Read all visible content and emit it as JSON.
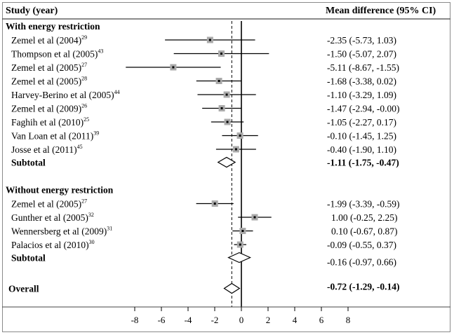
{
  "header": {
    "study": "Study (year)",
    "effect": "Mean difference (95% CI)"
  },
  "chart_data": {
    "type": "forest",
    "xlabel": "",
    "xlim": [
      -8,
      8
    ],
    "x_ticks": [
      "-8",
      "-6",
      "-4",
      "-2",
      "0",
      "2",
      "4",
      "6",
      "8"
    ],
    "overall_effect_line": -0.72,
    "sections": [
      {
        "title": "With energy restriction",
        "studies": [
          {
            "name": "Zemel et al (2004)",
            "ref": "29",
            "mean": -2.35,
            "lo": -5.73,
            "hi": 1.03,
            "text": "-2.35 (-5.73, 1.03)"
          },
          {
            "name": "Thompson et al (2005)",
            "ref": "43",
            "mean": -1.5,
            "lo": -5.07,
            "hi": 2.07,
            "text": "-1.50 (-5.07, 2.07)"
          },
          {
            "name": "Zemel et al (2005)",
            "ref": "27",
            "mean": -5.11,
            "lo": -8.67,
            "hi": -1.55,
            "text": "-5.11 (-8.67, -1.55)"
          },
          {
            "name": "Zemel et al (2005)",
            "ref": "28",
            "mean": -1.68,
            "lo": -3.38,
            "hi": 0.02,
            "text": "-1.68 (-3.38, 0.02)"
          },
          {
            "name": "Harvey-Berino et al (2005)",
            "ref": "44",
            "mean": -1.1,
            "lo": -3.29,
            "hi": 1.09,
            "text": "-1.10 (-3.29, 1.09)"
          },
          {
            "name": "Zemel et al (2009)",
            "ref": "26",
            "mean": -1.47,
            "lo": -2.94,
            "hi": -0.0,
            "text": "-1.47 (-2.94, -0.00)"
          },
          {
            "name": "Faghih et al (2010)",
            "ref": "25",
            "mean": -1.05,
            "lo": -2.27,
            "hi": 0.17,
            "text": "-1.05 (-2.27, 0.17)"
          },
          {
            "name": "Van Loan et al (2011)",
            "ref": "39",
            "mean": -0.1,
            "lo": -1.45,
            "hi": 1.25,
            "text": "-0.10 (-1.45, 1.25)"
          },
          {
            "name": "Josse et al (2011)",
            "ref": "45",
            "mean": -0.4,
            "lo": -1.9,
            "hi": 1.1,
            "text": "-0.40 (-1.90, 1.10)"
          }
        ],
        "subtotal": {
          "label": "Subtotal",
          "mean": -1.11,
          "lo": -1.75,
          "hi": -0.47,
          "text": "-1.11 (-1.75, -0.47)"
        }
      },
      {
        "title": "Without energy restriction",
        "studies": [
          {
            "name": "Zemel et al (2005)",
            "ref": "27",
            "mean": -1.99,
            "lo": -3.39,
            "hi": -0.59,
            "text": "-1.99 (-3.39, -0.59)"
          },
          {
            "name": "Gunther et al (2005)",
            "ref": "32",
            "mean": 1.0,
            "lo": -0.25,
            "hi": 2.25,
            "text": "1.00 (-0.25, 2.25)"
          },
          {
            "name": "Wennersberg et al (2009)",
            "ref": "31",
            "mean": 0.1,
            "lo": -0.67,
            "hi": 0.87,
            "text": "0.10 (-0.67, 0.87)"
          },
          {
            "name": "Palacios et al (2010)",
            "ref": "30",
            "mean": -0.09,
            "lo": -0.55,
            "hi": 0.37,
            "text": "-0.09 (-0.55, 0.37)"
          }
        ],
        "subtotal": {
          "label": "Subtotal",
          "mean": -0.16,
          "lo": -0.97,
          "hi": 0.66,
          "text": "-0.16 (-0.97, 0.66)"
        }
      }
    ],
    "overall": {
      "label": "Overall",
      "mean": -0.72,
      "lo": -1.29,
      "hi": -0.14,
      "text": "-0.72 (-1.29, -0.14)"
    }
  },
  "colors": {
    "marker": "#aaaaaa",
    "line": "#000000",
    "frame": "#8a8a8a"
  }
}
